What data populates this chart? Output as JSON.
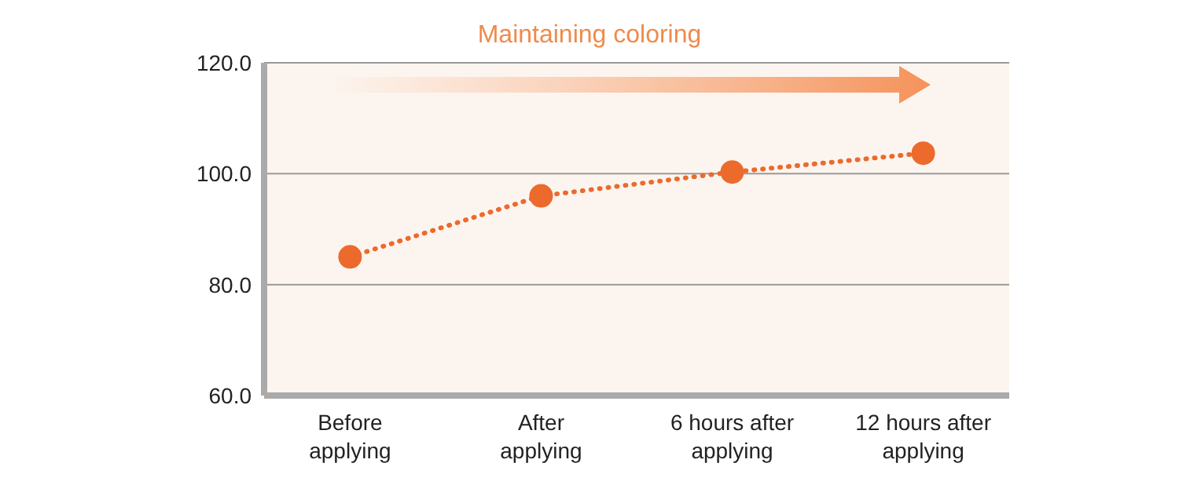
{
  "chart_data": {
    "type": "line",
    "categories": [
      "Before\napplying",
      "After\napplying",
      "6 hours after\napplying",
      "12 hours after\napplying"
    ],
    "series": [
      {
        "color": "#ec6a2c",
        "values": [
          85,
          96,
          100.3,
          103.7
        ]
      }
    ],
    "ylim": [
      60,
      120
    ],
    "yticks": [
      {
        "value": 60,
        "label": "60.0"
      },
      {
        "value": 80,
        "label": "80.0"
      },
      {
        "value": 100,
        "label": "100.0"
      },
      {
        "value": 120,
        "label": "120.0"
      }
    ],
    "grid": "y",
    "marker": "circle",
    "line_style": "dotted",
    "annotations": [
      "Maintaining coloring"
    ]
  }
}
